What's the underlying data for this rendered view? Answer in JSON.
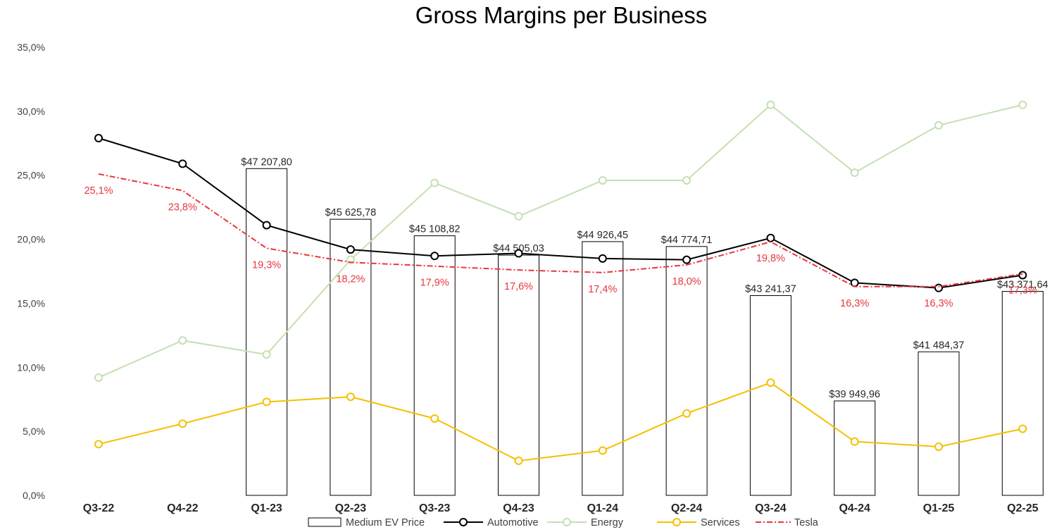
{
  "chart_data": {
    "type": "bar+line",
    "title": "Gross Margins per Business",
    "categories": [
      "Q3-22",
      "Q4-22",
      "Q1-23",
      "Q2-23",
      "Q3-23",
      "Q4-23",
      "Q1-24",
      "Q2-24",
      "Q3-24",
      "Q4-24",
      "Q1-25",
      "Q2-25"
    ],
    "y_axis": {
      "min": 0,
      "max": 35,
      "step": 5,
      "tick_labels": [
        "0,0%",
        "5,0%",
        "10,0%",
        "15,0%",
        "20,0%",
        "25,0%",
        "30,0%",
        "35,0%"
      ]
    },
    "bar_series": {
      "name": "Medium EV Price",
      "values": [
        null,
        null,
        47207.8,
        45625.78,
        45108.82,
        44505.03,
        44926.45,
        44774.71,
        43241.37,
        39949.96,
        41484.37,
        43371.64
      ],
      "labels": [
        "",
        "",
        "$47 207,80",
        "$45 625,78",
        "$45 108,82",
        "$44 505,03",
        "$44 926,45",
        "$44 774,71",
        "$43 241,37",
        "$39 949,96",
        "$41 484,37",
        "$43 371,64"
      ],
      "secondary_axis": {
        "min": 37000,
        "max": 51000,
        "visible": false
      }
    },
    "series": [
      {
        "name": "Automotive",
        "color": "#000000",
        "style": "line-marker",
        "values": [
          27.9,
          25.9,
          21.1,
          19.2,
          18.7,
          18.9,
          18.5,
          18.4,
          20.1,
          16.6,
          16.2,
          17.2
        ]
      },
      {
        "name": "Energy",
        "color": "#c3e0b4",
        "style": "line-marker",
        "values": [
          9.2,
          12.1,
          11.0,
          18.4,
          24.4,
          21.8,
          24.6,
          24.6,
          30.5,
          25.2,
          28.9,
          30.5
        ]
      },
      {
        "name": "Services",
        "color": "#f5c000",
        "style": "line-marker",
        "values": [
          4.0,
          5.6,
          7.3,
          7.7,
          6.0,
          2.7,
          3.5,
          6.4,
          8.8,
          4.2,
          3.8,
          5.2
        ]
      },
      {
        "name": "Tesla",
        "color": "#e8363e",
        "style": "dash-dot",
        "values": [
          25.1,
          23.8,
          19.3,
          18.2,
          17.9,
          17.6,
          17.4,
          18.0,
          19.8,
          16.3,
          16.3,
          17.3
        ],
        "labels": [
          "25,1%",
          "23,8%",
          "19,3%",
          "18,2%",
          "17,9%",
          "17,6%",
          "17,4%",
          "18,0%",
          "19,8%",
          "16,3%",
          "16,3%",
          "17,3%"
        ]
      }
    ],
    "legend": {
      "position": "bottom",
      "entries": [
        "Medium EV Price",
        "Automotive",
        "Energy",
        "Services",
        "Tesla"
      ]
    },
    "grid": false
  }
}
